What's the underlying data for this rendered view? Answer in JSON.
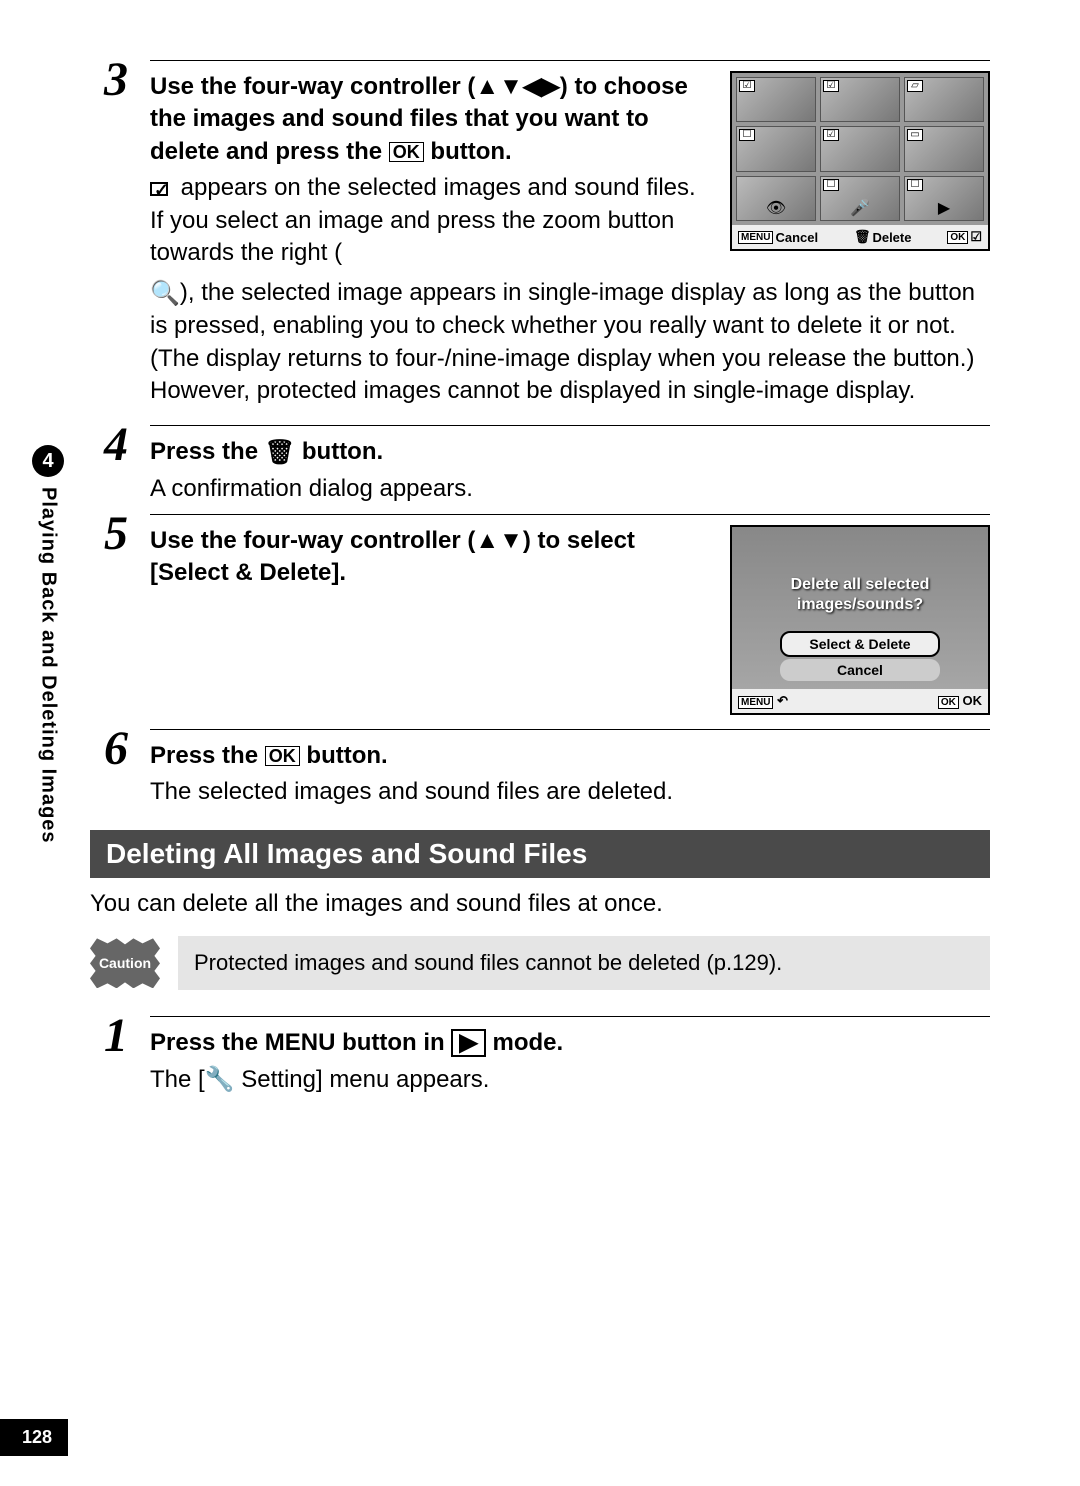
{
  "sidebar": {
    "chapter_number": "4",
    "chapter_title": "Playing Back and Deleting Images"
  },
  "step3": {
    "num": "3",
    "head_a": "Use the four-way controller ",
    "head_b": "(▲▼◀▶) to choose the images and sound files that you want to delete and press the ",
    "head_c": " button.",
    "line1a": " appears on the selected images and sound files.",
    "line2": "If you select an image and press the zoom button towards the right (",
    "line3": "), the selected image appears in single-image display as long as the button is pressed, enabling you to check whether you really want to delete it or not. (The display returns to four-/nine-image display when you release the button.) However, protected images cannot be displayed in single-image display.",
    "ok_label": "OK",
    "zoom_icon": "🔍"
  },
  "lcd1": {
    "marks": [
      "☑",
      "☑",
      "▱",
      "☐",
      "☑",
      "▭",
      "",
      "☐",
      "☐"
    ],
    "icons": [
      "",
      "",
      "",
      "",
      "",
      "",
      "👁",
      "🎤",
      "▶"
    ],
    "bar_cancel": "Cancel",
    "bar_delete": "Delete",
    "bar_menu": "MENU",
    "bar_trash": "🗑",
    "bar_ok": "OK",
    "bar_check": "☑"
  },
  "step4": {
    "num": "4",
    "head_a": "Press the ",
    "head_b": " button.",
    "trash_icon": "🗑",
    "text": "A confirmation dialog appears."
  },
  "step5": {
    "num": "5",
    "head": "Use the four-way controller (▲▼) to select [Select & Delete]."
  },
  "lcd2": {
    "prompt1": "Delete all selected",
    "prompt2": "images/sounds?",
    "btn_select": "Select & Delete",
    "btn_cancel": "Cancel",
    "bar_menu": "MENU",
    "bar_back": "↶",
    "bar_okbox": "OK",
    "bar_ok": "OK"
  },
  "step6": {
    "num": "6",
    "head_a": "Press the ",
    "head_b": " button.",
    "ok_label": "OK",
    "text": "The selected images and sound files are deleted."
  },
  "section": {
    "title": "Deleting All Images and Sound Files",
    "intro": "You can delete all the images and sound files at once."
  },
  "caution": {
    "label": "Caution",
    "text": "Protected images and sound files cannot be deleted (p.129)."
  },
  "step1n": {
    "num": "1",
    "head_a": "Press the ",
    "head_menu": "MENU",
    "head_b": " button in ",
    "head_c": " mode.",
    "play_icon": "▶",
    "text_a": "The [",
    "tool_icon": "🔧",
    "text_b": " Setting] menu appears."
  },
  "page_number": "128"
}
